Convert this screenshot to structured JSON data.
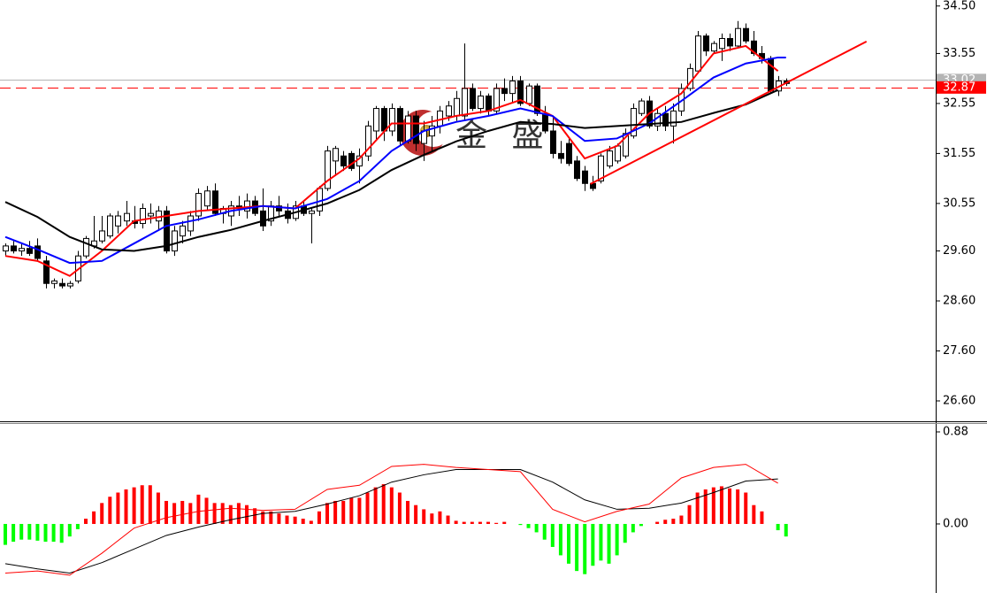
{
  "chart_data": [
    {
      "type": "candlestick",
      "watermark": "金 盛",
      "xlim": [
        -0.66,
        115.6
      ],
      "ylim": [
        26.21,
        34.62
      ],
      "yticks": [
        {
          "value": 34.5,
          "label": "34.50"
        },
        33.55,
        32.55,
        31.55,
        30.55,
        {
          "value": 29.6,
          "label": "29.60"
        },
        {
          "value": 28.6,
          "label": "28.60"
        },
        {
          "value": 27.6,
          "label": "27.60"
        },
        {
          "value": 26.6,
          "label": "26.60"
        }
      ],
      "up_color": "#ffffff",
      "down_color": "#000000",
      "edge_color": "#000000",
      "ohlc": [
        [
          29.6,
          29.75,
          29.5,
          29.7
        ],
        [
          29.7,
          29.8,
          29.55,
          29.6
        ],
        [
          29.6,
          29.75,
          29.5,
          29.65
        ],
        [
          29.65,
          29.8,
          29.5,
          29.55
        ],
        [
          29.7,
          29.85,
          29.4,
          29.45
        ],
        [
          29.4,
          29.5,
          28.85,
          28.95
        ],
        [
          28.95,
          29.05,
          28.85,
          29.0
        ],
        [
          28.95,
          29.05,
          28.85,
          28.9
        ],
        [
          28.9,
          29.0,
          28.85,
          28.95
        ],
        [
          29.0,
          29.6,
          28.95,
          29.5
        ],
        [
          29.5,
          29.9,
          29.45,
          29.85
        ],
        [
          29.7,
          30.3,
          29.65,
          29.8
        ],
        [
          29.8,
          30.3,
          29.75,
          30.0
        ],
        [
          29.9,
          30.35,
          29.85,
          30.3
        ],
        [
          30.1,
          30.4,
          29.95,
          30.3
        ],
        [
          30.2,
          30.6,
          30.1,
          30.35
        ],
        [
          30.2,
          30.5,
          30.05,
          30.15
        ],
        [
          30.15,
          30.55,
          30.05,
          30.45
        ],
        [
          30.3,
          30.55,
          30.15,
          30.35
        ],
        [
          30.2,
          30.5,
          30.0,
          30.4
        ],
        [
          30.4,
          30.5,
          29.55,
          29.6
        ],
        [
          29.6,
          30.1,
          29.5,
          30.0
        ],
        [
          29.9,
          30.2,
          29.75,
          30.1
        ],
        [
          30.0,
          30.4,
          29.9,
          30.3
        ],
        [
          30.3,
          30.85,
          30.2,
          30.75
        ],
        [
          30.5,
          30.9,
          30.4,
          30.8
        ],
        [
          30.8,
          30.95,
          30.3,
          30.35
        ],
        [
          30.35,
          30.5,
          30.15,
          30.45
        ],
        [
          30.3,
          30.6,
          30.1,
          30.5
        ],
        [
          30.5,
          30.7,
          30.3,
          30.45
        ],
        [
          30.4,
          30.75,
          30.25,
          30.6
        ],
        [
          30.6,
          30.7,
          30.3,
          30.35
        ],
        [
          30.4,
          30.85,
          30.0,
          30.1
        ],
        [
          30.2,
          30.6,
          30.1,
          30.5
        ],
        [
          30.5,
          30.7,
          30.3,
          30.4
        ],
        [
          30.4,
          30.55,
          30.15,
          30.25
        ],
        [
          30.25,
          30.6,
          30.2,
          30.5
        ],
        [
          30.5,
          30.6,
          30.3,
          30.35
        ],
        [
          30.35,
          30.45,
          29.75,
          30.4
        ],
        [
          30.4,
          30.9,
          30.3,
          30.85
        ],
        [
          30.85,
          31.7,
          30.8,
          31.6
        ],
        [
          31.4,
          31.7,
          31.1,
          31.65
        ],
        [
          31.5,
          31.6,
          31.2,
          31.3
        ],
        [
          31.55,
          31.6,
          31.2,
          31.25
        ],
        [
          31.3,
          31.65,
          30.95,
          31.5
        ],
        [
          31.5,
          32.2,
          31.4,
          32.1
        ],
        [
          32.0,
          32.5,
          31.8,
          32.45
        ],
        [
          32.45,
          32.5,
          31.8,
          32.0
        ],
        [
          32.0,
          32.55,
          31.9,
          32.45
        ],
        [
          32.45,
          32.5,
          31.7,
          31.8
        ],
        [
          31.8,
          32.4,
          31.75,
          32.3
        ],
        [
          32.3,
          32.4,
          31.6,
          31.75
        ],
        [
          31.75,
          32.2,
          31.4,
          32.0
        ],
        [
          31.9,
          32.3,
          31.6,
          32.1
        ],
        [
          32.1,
          32.5,
          31.95,
          32.4
        ],
        [
          32.3,
          32.6,
          32.2,
          32.5
        ],
        [
          32.3,
          32.8,
          32.2,
          32.65
        ],
        [
          32.3,
          33.75,
          32.2,
          32.85
        ],
        [
          32.85,
          32.95,
          32.4,
          32.45
        ],
        [
          32.45,
          32.8,
          32.35,
          32.7
        ],
        [
          32.7,
          32.75,
          32.3,
          32.4
        ],
        [
          32.4,
          32.95,
          32.35,
          32.85
        ],
        [
          32.85,
          33.05,
          32.6,
          32.75
        ],
        [
          32.75,
          33.1,
          32.55,
          33.0
        ],
        [
          33.0,
          33.1,
          32.5,
          32.55
        ],
        [
          32.55,
          32.95,
          32.5,
          32.9
        ],
        [
          32.9,
          32.95,
          32.3,
          32.35
        ],
        [
          32.35,
          32.5,
          31.95,
          32.0
        ],
        [
          32.0,
          32.3,
          31.45,
          31.55
        ],
        [
          31.55,
          31.8,
          31.35,
          31.45
        ],
        [
          31.75,
          31.85,
          31.3,
          31.35
        ],
        [
          31.4,
          31.5,
          31.0,
          31.05
        ],
        [
          31.2,
          31.3,
          30.8,
          30.95
        ],
        [
          30.95,
          31.1,
          30.8,
          30.85
        ],
        [
          31.0,
          31.55,
          30.95,
          31.5
        ],
        [
          31.3,
          31.7,
          31.25,
          31.6
        ],
        [
          31.4,
          31.75,
          31.35,
          31.7
        ],
        [
          31.5,
          32.05,
          31.45,
          31.95
        ],
        [
          31.9,
          32.55,
          31.85,
          32.45
        ],
        [
          32.35,
          32.65,
          32.3,
          32.6
        ],
        [
          32.6,
          32.7,
          32.05,
          32.1
        ],
        [
          32.1,
          32.45,
          32.0,
          32.35
        ],
        [
          32.35,
          32.5,
          32.0,
          32.1
        ],
        [
          32.1,
          32.55,
          31.75,
          32.4
        ],
        [
          32.4,
          32.95,
          32.3,
          32.85
        ],
        [
          32.85,
          33.35,
          32.8,
          33.25
        ],
        [
          33.2,
          34.0,
          33.15,
          33.9
        ],
        [
          33.9,
          33.95,
          33.5,
          33.6
        ],
        [
          33.6,
          33.8,
          33.55,
          33.75
        ],
        [
          33.65,
          33.95,
          33.4,
          33.85
        ],
        [
          33.85,
          33.95,
          33.6,
          33.7
        ],
        [
          33.7,
          34.2,
          33.65,
          34.05
        ],
        [
          34.05,
          34.15,
          33.75,
          33.8
        ],
        [
          33.8,
          34.0,
          33.5,
          33.55
        ],
        [
          33.55,
          33.7,
          33.35,
          33.45
        ],
        [
          33.45,
          33.5,
          32.75,
          32.8
        ],
        [
          32.8,
          33.1,
          32.7,
          33.0
        ],
        [
          33.0,
          33.05,
          32.9,
          32.95
        ]
      ],
      "moving_averages": [
        {
          "color": "#ff0000",
          "x": [
            0,
            4,
            8,
            12,
            16,
            20,
            24,
            28,
            32,
            36,
            40,
            44,
            48,
            52,
            56,
            60,
            64,
            68,
            72,
            76,
            80,
            84,
            88,
            92,
            96
          ],
          "values": [
            29.5,
            29.4,
            29.1,
            29.6,
            30.2,
            30.3,
            30.4,
            30.45,
            30.5,
            30.45,
            31.0,
            31.45,
            32.15,
            32.15,
            32.3,
            32.4,
            32.62,
            32.3,
            31.45,
            31.7,
            32.35,
            32.75,
            33.55,
            33.7,
            33.2
          ]
        },
        {
          "color": "#0000ff",
          "x": [
            0,
            4,
            8,
            12,
            16,
            20,
            24,
            28,
            32,
            36,
            40,
            44,
            48,
            52,
            56,
            60,
            64,
            68,
            72,
            76,
            80,
            84,
            88,
            92,
            96,
            97
          ],
          "values": [
            29.88,
            29.63,
            29.36,
            29.4,
            29.75,
            30.1,
            30.23,
            30.4,
            30.5,
            30.45,
            30.64,
            31.0,
            31.6,
            32.0,
            32.18,
            32.3,
            32.45,
            32.3,
            31.8,
            31.85,
            32.15,
            32.6,
            33.07,
            33.35,
            33.47,
            33.47
          ]
        },
        {
          "color": "#000000",
          "x": [
            0,
            4,
            8,
            12,
            16,
            20,
            24,
            28,
            32,
            36,
            40,
            44,
            48,
            52,
            56,
            60,
            64,
            68,
            72,
            76,
            80,
            84,
            88,
            92,
            96
          ],
          "values": [
            30.58,
            30.28,
            29.88,
            29.63,
            29.6,
            29.7,
            29.88,
            30.02,
            30.2,
            30.37,
            30.55,
            30.82,
            31.22,
            31.52,
            31.79,
            32.0,
            32.18,
            32.14,
            32.06,
            32.1,
            32.14,
            32.18,
            32.36,
            32.53,
            32.82
          ]
        }
      ],
      "trendline": {
        "color": "#ff0000",
        "x": [
          72.7,
          107
        ],
        "y": [
          30.94,
          33.79
        ]
      },
      "price_lines": [
        {
          "value": 33.02,
          "color": "#b4b4b4",
          "dashed": false
        },
        {
          "value": 32.87,
          "color": "#ff0000",
          "dashed": true
        }
      ]
    },
    {
      "type": "macd",
      "xlim": [
        -0.66,
        115.6
      ],
      "ylim": [
        -0.618,
        0.956
      ],
      "yticks": [
        0.88,
        {
          "value": 0,
          "label": "0.00"
        }
      ],
      "up_color": "#ff0000",
      "down_color": "#00ff00",
      "histogram": [
        -0.2,
        -0.17,
        -0.15,
        -0.15,
        -0.16,
        -0.17,
        -0.17,
        -0.18,
        -0.12,
        -0.05,
        0.05,
        0.12,
        0.2,
        0.26,
        0.3,
        0.33,
        0.35,
        0.37,
        0.37,
        0.3,
        0.22,
        0.2,
        0.22,
        0.2,
        0.28,
        0.25,
        0.2,
        0.2,
        0.18,
        0.2,
        0.18,
        0.15,
        0.12,
        0.12,
        0.1,
        0.08,
        0.07,
        0.05,
        0.03,
        0.12,
        0.2,
        0.22,
        0.22,
        0.25,
        0.25,
        0.3,
        0.35,
        0.38,
        0.35,
        0.3,
        0.22,
        0.18,
        0.14,
        0.1,
        0.12,
        0.08,
        0.03,
        0.02,
        0.02,
        0.02,
        0.02,
        0.01,
        0.02,
        0,
        -0.01,
        -0.04,
        -0.08,
        -0.15,
        -0.22,
        -0.3,
        -0.38,
        -0.45,
        -0.48,
        -0.4,
        -0.35,
        -0.38,
        -0.3,
        -0.18,
        -0.08,
        -0.02,
        0,
        0.02,
        0.04,
        0.05,
        0.08,
        0.18,
        0.3,
        0.33,
        0.35,
        0.36,
        0.34,
        0.33,
        0.3,
        0.18,
        0.12,
        0,
        -0.06,
        -0.12
      ],
      "lines": [
        {
          "color": "#000000",
          "x": [
            0,
            4,
            8,
            12,
            16,
            20,
            24,
            28,
            32,
            36,
            40,
            44,
            48,
            52,
            56,
            60,
            64,
            68,
            72,
            76,
            80,
            84,
            88,
            92,
            96
          ],
          "values": [
            -0.38,
            -0.43,
            -0.47,
            -0.37,
            -0.24,
            -0.11,
            -0.03,
            0.04,
            0.1,
            0.12,
            0.19,
            0.27,
            0.4,
            0.47,
            0.52,
            0.52,
            0.52,
            0.4,
            0.23,
            0.14,
            0.15,
            0.2,
            0.3,
            0.41,
            0.43
          ]
        },
        {
          "color": "#ff0000",
          "x": [
            0,
            4,
            8,
            12,
            16,
            20,
            24,
            28,
            32,
            36,
            40,
            44,
            48,
            52,
            56,
            60,
            64,
            68,
            72,
            76,
            80,
            84,
            88,
            92,
            96
          ],
          "values": [
            -0.47,
            -0.45,
            -0.49,
            -0.28,
            -0.04,
            0.06,
            0.12,
            0.15,
            0.13,
            0.14,
            0.33,
            0.37,
            0.55,
            0.57,
            0.54,
            0.52,
            0.5,
            0.14,
            0.02,
            0.12,
            0.19,
            0.44,
            0.54,
            0.57,
            0.39
          ]
        }
      ]
    }
  ]
}
